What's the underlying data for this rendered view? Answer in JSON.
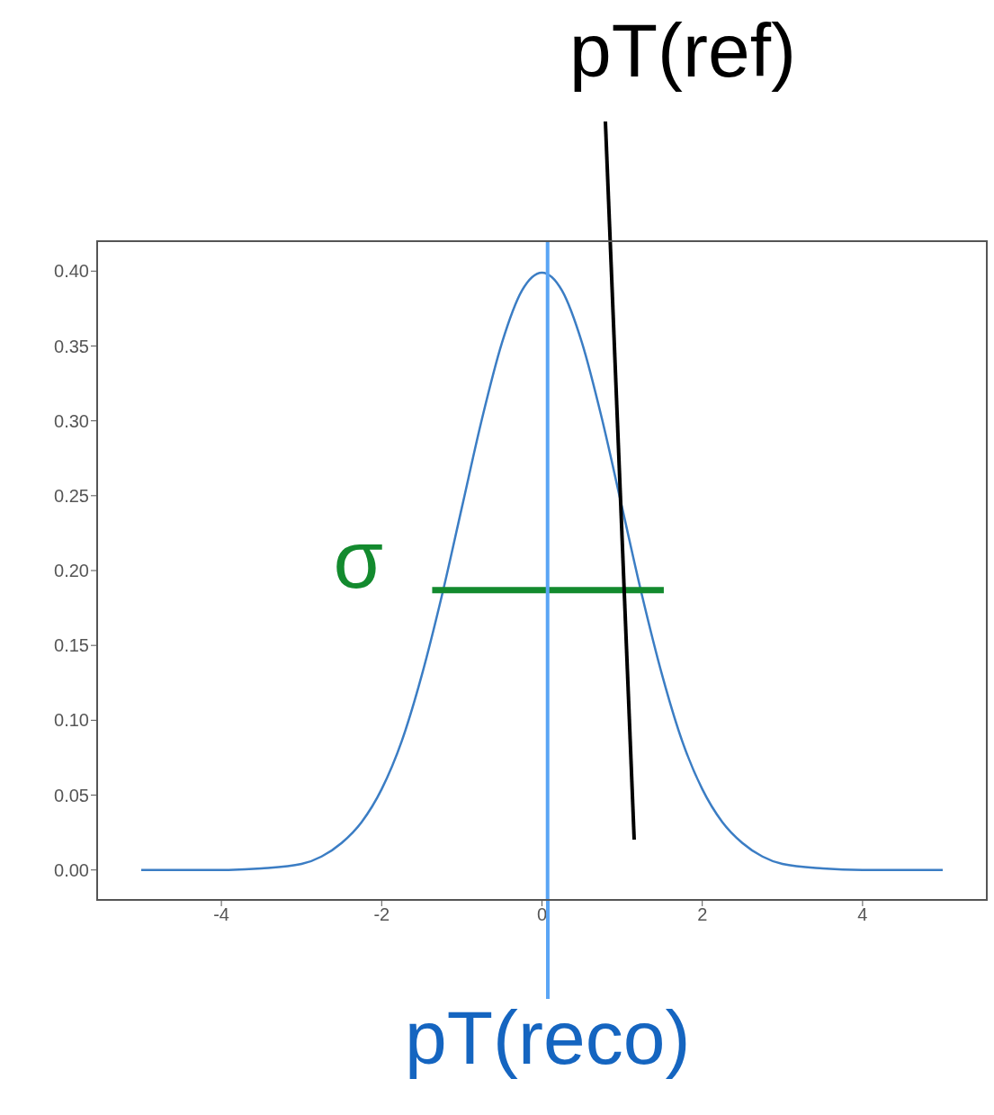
{
  "chart_data": {
    "type": "line",
    "xlim": [
      -5.55,
      5.55
    ],
    "ylim": [
      -0.02,
      0.42
    ],
    "xticks": [
      -4,
      -2,
      0,
      2,
      4
    ],
    "yticks": [
      {
        "value": 0,
        "label": "0.00"
      },
      {
        "value": 0.05,
        "label": "0.05"
      },
      {
        "value": 0.1,
        "label": "0.10"
      },
      {
        "value": 0.15,
        "label": "0.15"
      },
      {
        "value": 0.2,
        "label": "0.20"
      },
      {
        "value": 0.25,
        "label": "0.25"
      },
      {
        "value": 0.3,
        "label": "0.30"
      },
      {
        "value": 0.35,
        "label": "0.35"
      },
      {
        "value": 0.4,
        "label": "0.40"
      }
    ],
    "marker": "none",
    "line_style": "solid",
    "series": [
      {
        "color": "#3b7dc4",
        "x": [
          -5,
          -4,
          -3.5,
          -3,
          -2.75,
          -2.5,
          -2.25,
          -2,
          -1.75,
          -1.5,
          -1.25,
          -1,
          -0.75,
          -0.5,
          -0.25,
          0,
          0.25,
          0.5,
          0.75,
          1,
          1.25,
          1.5,
          1.75,
          2,
          2.25,
          2.5,
          2.75,
          3,
          3.5,
          4,
          5
        ],
        "values": [
          0,
          0,
          0.001,
          0.004,
          0.009,
          0.018,
          0.032,
          0.054,
          0.086,
          0.13,
          0.183,
          0.242,
          0.301,
          0.352,
          0.387,
          0.399,
          0.387,
          0.352,
          0.301,
          0.242,
          0.183,
          0.13,
          0.086,
          0.054,
          0.032,
          0.018,
          0.009,
          0.004,
          0.001,
          0,
          0
        ]
      },
      {
        "color": "#138a2e",
        "x": [
          -1.37,
          1.52
        ],
        "values": [
          0.187,
          0.187
        ]
      }
    ],
    "ref_lines": [
      {
        "axis": "x",
        "value": 0.07,
        "label": "pT(reco)",
        "color": "#5aa5f5"
      }
    ],
    "annotations": [
      "pT(ref)",
      {
        "text": "σ",
        "x": -1.37,
        "y": 0.187
      }
    ]
  }
}
